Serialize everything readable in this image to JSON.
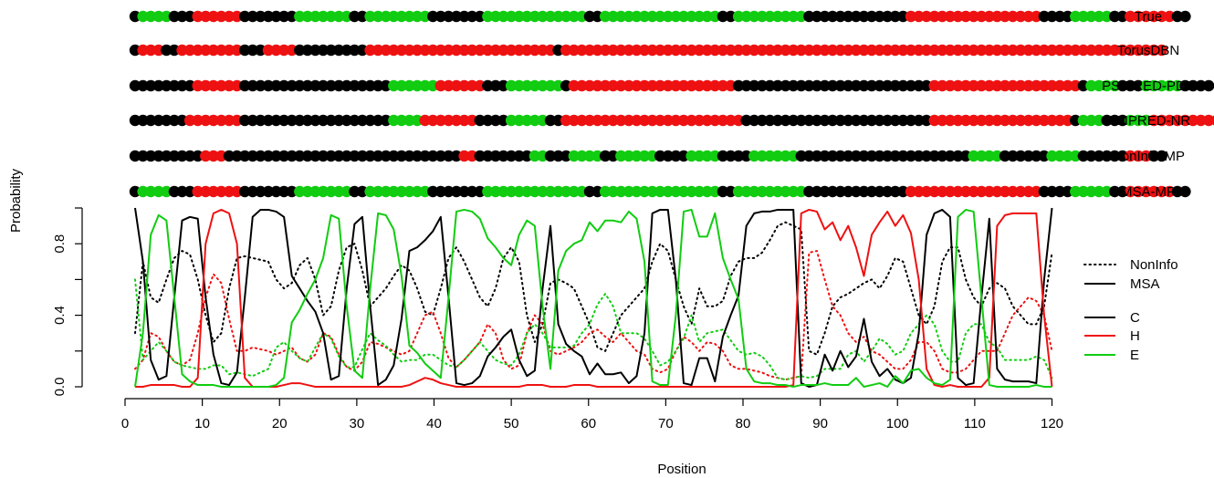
{
  "chart_data": {
    "type": "line",
    "xlabel": "Position",
    "ylabel": "Probability",
    "xlim": [
      0,
      120
    ],
    "ylim": [
      0,
      1
    ],
    "x_ticks": [
      "0",
      "10",
      "20",
      "30",
      "40",
      "50",
      "60",
      "70",
      "80",
      "90",
      "100",
      "110",
      "120"
    ],
    "y_ticks": [
      "0.0",
      "0.4",
      "0.8"
    ],
    "y_tick_values": [
      0,
      0.4,
      0.8
    ],
    "grid": false,
    "legend_line_style": [
      {
        "label": "NonInfo",
        "style": "dotted"
      },
      {
        "label": "MSA",
        "style": "solid"
      }
    ],
    "legend_classes": [
      {
        "label": "C",
        "color": "#000000"
      },
      {
        "label": "H",
        "color": "#ee1111"
      },
      {
        "label": "E",
        "color": "#11cc11"
      }
    ],
    "class_colors": {
      "C": "#000000",
      "H": "#ee1111",
      "E": "#11cc11"
    },
    "tracks": [
      {
        "label": "True",
        "seq": "CEEEECCCHHHHHHCCCCCCCEEEEEEECCEEEEEEEECCCCCCCEEEEEEEEEEEEECCEEEEEEEEEEEEEEECCEEEEEEEEECCCCCCCCCCCCCHHHHHHHHHHHHHHHHHCCCCEEEEECCHHHHHHCC"
      },
      {
        "label": "TorusDBN",
        "seq": "CHHHCCHHHHHHHHCCCHHHHCCCCCCCCCHHHHHHHHHHHHHHHHHHHHHHHHCHHHHHHHHHHHHHHHHHHHHHHHHHHHHHHHHHHHHHHHHHHHHHHHHHHHHHHHHHHHHHHHHHHHHHHHHHHHHH"
      },
      {
        "label": "PSIPRED-PDB",
        "seq": "CCCCCCCCHHHHHHCCCCCCCCCCCCCCCCCCCEEEEEEHHHHHHCCCEEEEEEECHHHHHHHHHHHHHHHHHHHHHCCCCCCCCCCCCCCCCCCCCCCCCCHHHHHHHHHHHHHHHHHHHCEEEECCCEEEEECCCC"
      },
      {
        "label": "PSIPRED-NR",
        "seq": "CCCCCCCHHHHHHHCCCCCCCCCCCCCCCCCCCEEEEHHHHHHHCCCCEEEEECCHHHHHHHHHHHHHHHHHHHHHHHCCCCCCCCCCCCCCCCCCCCCCCCHHHHHHHHHHHHHHHHHHCEEECCCEEEHHHHHHHHH"
      },
      {
        "label": "NonInfo-MP",
        "seq": "CCCCCCCCCHHHCCCCCCCCCCCCCCCCCCCCCCCCCCCCCCHHCCCCCCCEECCCEEEECCEEEEECCCCEEEECCCCEEEEEECCCCCCCCCCCCCCCCCCCCCCEEEECCCCCCEEEECCCCCCHHHCC"
      },
      {
        "label": "MSA-MP",
        "seq": "CEEEECCCHHHHHHCCCCCCCEEEEEEECCEEEEEEEECCCCCCCEEEEEEEEEEEEECCEEEEEEEEEEEEEEECCEEEEEEEEECCCCCCCCCCCCCHHHHHHHHHHHHHHHHHCCCCEEEEECCHHHHHHCC"
      }
    ],
    "x": [
      1,
      2,
      3,
      4,
      5,
      6,
      7,
      8,
      9,
      10,
      11,
      12,
      13,
      14,
      15,
      16,
      17,
      18,
      19,
      20,
      21,
      22,
      23,
      24,
      25,
      26,
      27,
      28,
      29,
      30,
      31,
      32,
      33,
      34,
      35,
      36,
      37,
      38,
      39,
      40,
      41,
      42,
      43,
      44,
      45,
      46,
      47,
      48,
      49,
      50,
      51,
      52,
      53,
      54,
      55,
      56,
      57,
      58,
      59,
      60,
      61,
      62,
      63,
      64,
      65,
      66,
      67,
      68,
      69,
      70,
      71,
      72,
      73,
      74,
      75,
      76,
      77,
      78,
      79,
      80,
      81,
      82,
      83,
      84,
      85,
      86,
      87,
      88,
      89,
      90,
      91,
      92,
      93,
      94,
      95,
      96,
      97,
      98,
      99,
      100,
      101,
      102,
      103,
      104,
      105,
      106,
      107,
      108,
      109,
      110,
      111,
      112,
      113,
      114,
      115,
      116,
      117,
      118
    ],
    "series": [
      {
        "name": "MSA C",
        "class": "C",
        "style": "solid",
        "values": [
          1.0,
          0.7,
          0.15,
          0.04,
          0.06,
          0.5,
          0.93,
          0.95,
          0.94,
          0.5,
          0.18,
          0.02,
          0.01,
          0.08,
          0.5,
          0.95,
          0.99,
          0.99,
          0.98,
          0.95,
          0.62,
          0.55,
          0.48,
          0.42,
          0.3,
          0.04,
          0.06,
          0.55,
          0.91,
          0.95,
          0.45,
          0.01,
          0.04,
          0.12,
          0.38,
          0.76,
          0.78,
          0.82,
          0.87,
          0.95,
          0.5,
          0.02,
          0.01,
          0.02,
          0.06,
          0.17,
          0.22,
          0.28,
          0.32,
          0.15,
          0.06,
          0.09,
          0.55,
          0.9,
          0.35,
          0.24,
          0.2,
          0.17,
          0.07,
          0.13,
          0.07,
          0.07,
          0.08,
          0.02,
          0.06,
          0.3,
          0.97,
          0.99,
          0.99,
          0.6,
          0.02,
          0.01,
          0.16,
          0.16,
          0.03,
          0.28,
          0.4,
          0.51,
          0.9,
          0.97,
          0.98,
          0.98,
          0.99,
          0.99,
          0.99,
          0.02,
          0.0,
          0.01,
          0.18,
          0.09,
          0.2,
          0.11,
          0.17,
          0.38,
          0.14,
          0.06,
          0.1,
          0.04,
          0.02,
          0.05,
          0.3,
          0.85,
          0.97,
          0.99,
          0.95,
          0.05,
          0.01,
          0.02,
          0.5,
          0.94,
          0.1,
          0.04,
          0.03,
          0.03,
          0.03,
          0.02,
          0.6,
          1.0
        ]
      },
      {
        "name": "MSA H",
        "class": "H",
        "style": "solid",
        "values": [
          0.0,
          0.0,
          0.01,
          0.01,
          0.01,
          0.01,
          0.0,
          0.0,
          0.05,
          0.8,
          0.97,
          0.99,
          0.97,
          0.8,
          0.05,
          0.0,
          0.0,
          0.0,
          0.0,
          0.01,
          0.02,
          0.02,
          0.01,
          0.0,
          0.0,
          0.0,
          0.0,
          0.0,
          0.0,
          0.0,
          0.0,
          0.0,
          0.0,
          0.0,
          0.0,
          0.01,
          0.03,
          0.05,
          0.04,
          0.02,
          0.01,
          0.0,
          0.0,
          0.0,
          0.0,
          0.0,
          0.0,
          0.0,
          0.0,
          0.0,
          0.01,
          0.01,
          0.01,
          0.0,
          0.0,
          0.0,
          0.01,
          0.01,
          0.01,
          0.0,
          0.0,
          0.0,
          0.0,
          0.0,
          0.0,
          0.0,
          0.0,
          0.0,
          0.0,
          0.0,
          0.0,
          0.0,
          0.0,
          0.0,
          0.0,
          0.0,
          0.0,
          0.0,
          0.0,
          0.0,
          0.0,
          0.0,
          0.0,
          0.0,
          0.01,
          0.97,
          0.99,
          0.98,
          0.88,
          0.92,
          0.82,
          0.9,
          0.78,
          0.62,
          0.85,
          0.92,
          0.98,
          0.9,
          0.96,
          0.86,
          0.6,
          0.1,
          0.01,
          0.0,
          0.01,
          0.0,
          0.0,
          0.0,
          0.0,
          0.05,
          0.9,
          0.96,
          0.97,
          0.97,
          0.97,
          0.97,
          0.4,
          0.0
        ]
      },
      {
        "name": "MSA E",
        "class": "E",
        "style": "solid",
        "values": [
          0.0,
          0.3,
          0.85,
          0.96,
          0.93,
          0.5,
          0.07,
          0.03,
          0.01,
          0.01,
          0.01,
          0.0,
          0.0,
          0.0,
          0.0,
          0.0,
          0.0,
          0.0,
          0.01,
          0.05,
          0.36,
          0.43,
          0.52,
          0.6,
          0.72,
          0.96,
          0.94,
          0.45,
          0.09,
          0.05,
          0.55,
          0.97,
          0.96,
          0.88,
          0.62,
          0.23,
          0.19,
          0.13,
          0.09,
          0.05,
          0.5,
          0.98,
          0.99,
          0.98,
          0.94,
          0.83,
          0.78,
          0.72,
          0.68,
          0.85,
          0.93,
          0.9,
          0.45,
          0.1,
          0.65,
          0.76,
          0.8,
          0.82,
          0.92,
          0.87,
          0.93,
          0.93,
          0.92,
          0.98,
          0.94,
          0.7,
          0.03,
          0.01,
          0.01,
          0.4,
          0.98,
          0.99,
          0.84,
          0.84,
          0.97,
          0.72,
          0.6,
          0.49,
          0.1,
          0.03,
          0.02,
          0.02,
          0.01,
          0.01,
          0.0,
          0.01,
          0.01,
          0.01,
          0.02,
          0.01,
          0.01,
          0.01,
          0.05,
          0.0,
          0.01,
          0.02,
          0.0,
          0.06,
          0.02,
          0.09,
          0.1,
          0.05,
          0.02,
          0.01,
          0.04,
          0.95,
          0.99,
          0.98,
          0.5,
          0.01,
          0.0,
          0.0,
          0.0,
          0.0,
          0.0,
          0.01,
          0.0,
          0.0
        ]
      },
      {
        "name": "NonInfo C",
        "class": "C",
        "style": "dotted",
        "values": [
          0.3,
          0.7,
          0.5,
          0.47,
          0.6,
          0.72,
          0.76,
          0.74,
          0.6,
          0.4,
          0.25,
          0.3,
          0.55,
          0.72,
          0.73,
          0.72,
          0.71,
          0.7,
          0.6,
          0.55,
          0.58,
          0.68,
          0.72,
          0.6,
          0.4,
          0.45,
          0.65,
          0.78,
          0.8,
          0.65,
          0.45,
          0.5,
          0.55,
          0.62,
          0.68,
          0.65,
          0.55,
          0.42,
          0.4,
          0.55,
          0.72,
          0.78,
          0.7,
          0.6,
          0.5,
          0.45,
          0.55,
          0.72,
          0.78,
          0.7,
          0.4,
          0.25,
          0.35,
          0.58,
          0.6,
          0.58,
          0.55,
          0.45,
          0.35,
          0.22,
          0.2,
          0.3,
          0.4,
          0.45,
          0.5,
          0.55,
          0.7,
          0.8,
          0.76,
          0.6,
          0.45,
          0.35,
          0.55,
          0.45,
          0.45,
          0.48,
          0.62,
          0.7,
          0.72,
          0.72,
          0.75,
          0.82,
          0.9,
          0.92,
          0.9,
          0.88,
          0.2,
          0.18,
          0.3,
          0.45,
          0.5,
          0.52,
          0.55,
          0.58,
          0.6,
          0.55,
          0.62,
          0.72,
          0.7,
          0.55,
          0.4,
          0.35,
          0.45,
          0.7,
          0.78,
          0.78,
          0.6,
          0.5,
          0.45,
          0.55,
          0.58,
          0.55,
          0.45,
          0.4,
          0.35,
          0.35,
          0.45,
          0.75
        ]
      },
      {
        "name": "NonInfo H",
        "class": "H",
        "style": "dotted",
        "values": [
          0.1,
          0.15,
          0.3,
          0.28,
          0.2,
          0.14,
          0.12,
          0.15,
          0.3,
          0.5,
          0.63,
          0.58,
          0.38,
          0.2,
          0.2,
          0.22,
          0.21,
          0.2,
          0.18,
          0.2,
          0.22,
          0.16,
          0.14,
          0.18,
          0.3,
          0.28,
          0.18,
          0.11,
          0.09,
          0.14,
          0.25,
          0.24,
          0.22,
          0.2,
          0.18,
          0.2,
          0.3,
          0.4,
          0.42,
          0.3,
          0.16,
          0.11,
          0.15,
          0.2,
          0.25,
          0.35,
          0.3,
          0.15,
          0.1,
          0.12,
          0.3,
          0.4,
          0.35,
          0.2,
          0.18,
          0.2,
          0.22,
          0.25,
          0.3,
          0.32,
          0.28,
          0.25,
          0.3,
          0.25,
          0.2,
          0.18,
          0.1,
          0.08,
          0.1,
          0.2,
          0.28,
          0.25,
          0.2,
          0.25,
          0.24,
          0.2,
          0.12,
          0.1,
          0.1,
          0.09,
          0.08,
          0.06,
          0.05,
          0.04,
          0.05,
          0.06,
          0.75,
          0.76,
          0.6,
          0.45,
          0.4,
          0.3,
          0.25,
          0.28,
          0.2,
          0.18,
          0.14,
          0.1,
          0.1,
          0.15,
          0.25,
          0.25,
          0.2,
          0.1,
          0.08,
          0.08,
          0.1,
          0.15,
          0.2,
          0.2,
          0.2,
          0.3,
          0.4,
          0.45,
          0.5,
          0.48,
          0.4,
          0.2
        ]
      },
      {
        "name": "NonInfo E",
        "class": "E",
        "style": "dotted",
        "values": [
          0.6,
          0.15,
          0.2,
          0.25,
          0.2,
          0.14,
          0.12,
          0.11,
          0.1,
          0.1,
          0.12,
          0.12,
          0.07,
          0.08,
          0.07,
          0.06,
          0.08,
          0.1,
          0.22,
          0.25,
          0.2,
          0.16,
          0.14,
          0.22,
          0.3,
          0.27,
          0.17,
          0.11,
          0.11,
          0.21,
          0.3,
          0.26,
          0.23,
          0.18,
          0.14,
          0.15,
          0.15,
          0.18,
          0.18,
          0.15,
          0.12,
          0.11,
          0.15,
          0.2,
          0.25,
          0.2,
          0.15,
          0.13,
          0.12,
          0.18,
          0.3,
          0.35,
          0.3,
          0.22,
          0.22,
          0.22,
          0.23,
          0.3,
          0.35,
          0.46,
          0.52,
          0.45,
          0.3,
          0.3,
          0.3,
          0.27,
          0.2,
          0.12,
          0.14,
          0.2,
          0.27,
          0.4,
          0.25,
          0.3,
          0.31,
          0.32,
          0.26,
          0.2,
          0.18,
          0.19,
          0.17,
          0.12,
          0.05,
          0.04,
          0.05,
          0.06,
          0.05,
          0.06,
          0.1,
          0.1,
          0.1,
          0.18,
          0.2,
          0.14,
          0.2,
          0.27,
          0.24,
          0.18,
          0.2,
          0.3,
          0.35,
          0.4,
          0.35,
          0.2,
          0.14,
          0.14,
          0.3,
          0.35,
          0.35,
          0.25,
          0.22,
          0.15,
          0.15,
          0.15,
          0.15,
          0.17,
          0.15,
          0.05
        ]
      }
    ]
  }
}
